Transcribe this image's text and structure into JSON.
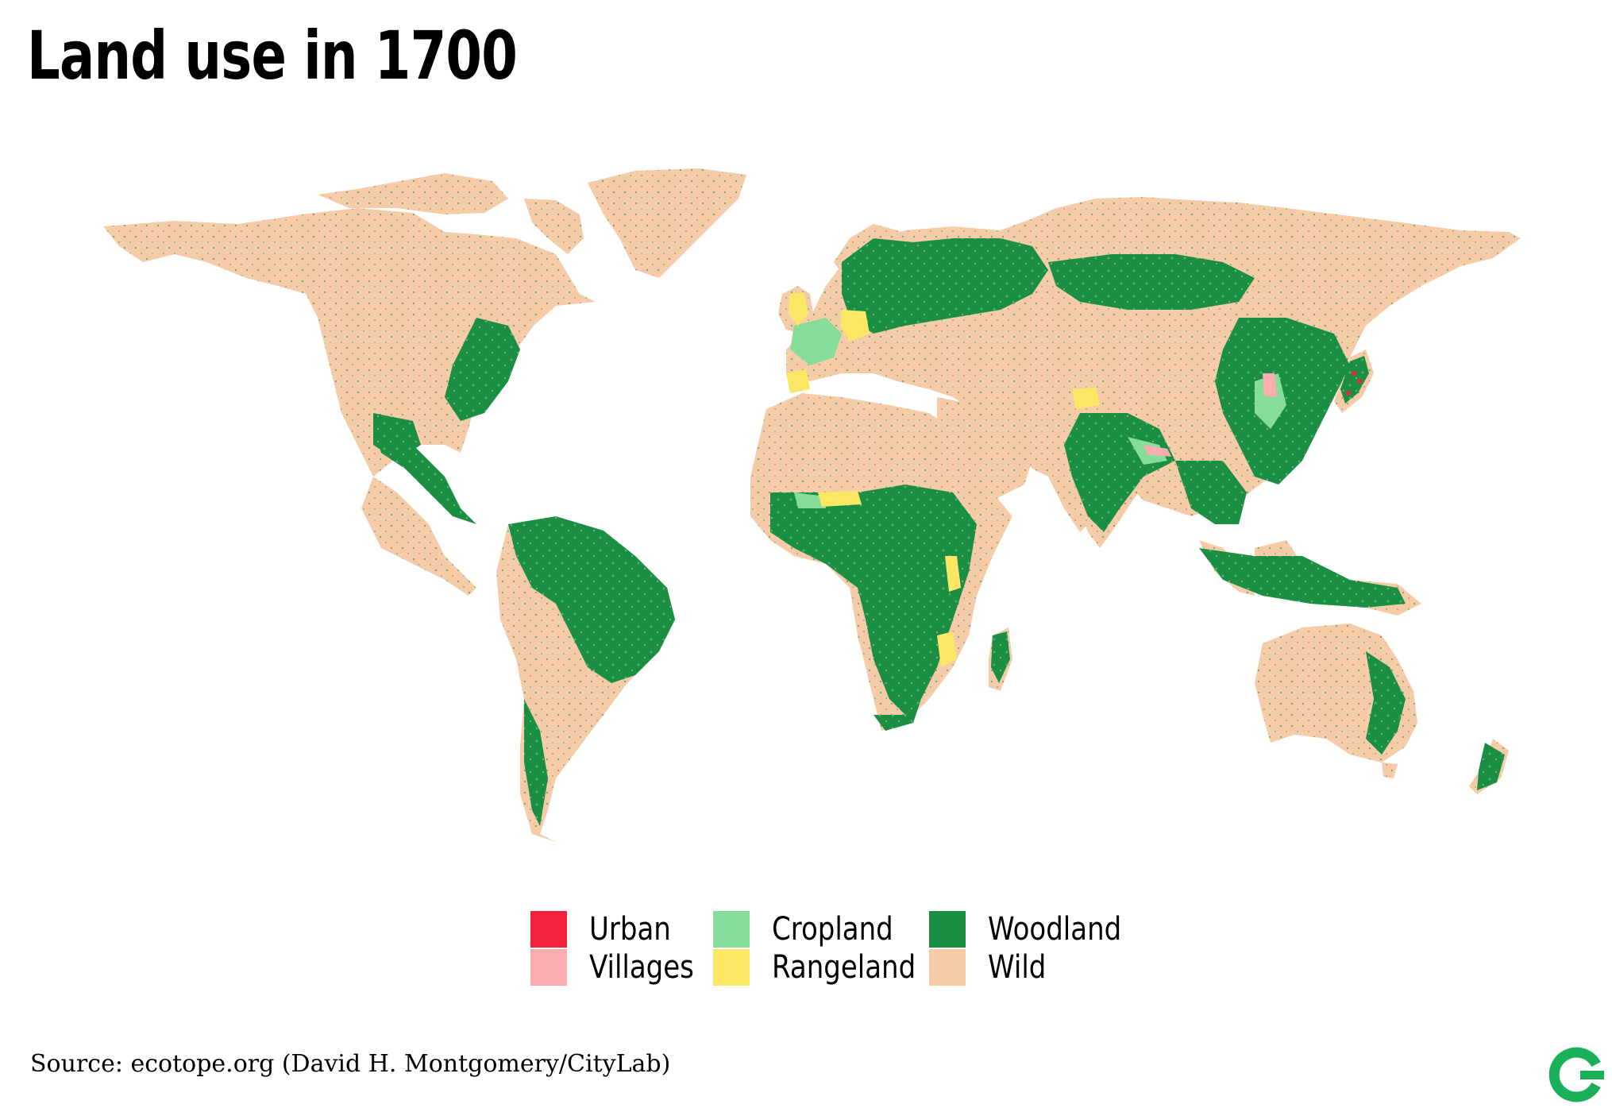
{
  "title": "Land use in 1700",
  "source": "Source: ecotope.org (David H. Montgomery/CityLab)",
  "colors": {
    "urban": "#f5223f",
    "villages": "#fcadad",
    "cropland": "#86dd9a",
    "rangeland": "#fbe764",
    "woodland": "#1a8f44",
    "wild": "#f6cba8",
    "logo": "#1ab05a"
  },
  "legend": [
    {
      "label": "Urban",
      "color": "#f5223f"
    },
    {
      "label": "Villages",
      "color": "#fcadad"
    },
    {
      "label": "Cropland",
      "color": "#86dd9a"
    },
    {
      "label": "Rangeland",
      "color": "#fbe764"
    },
    {
      "label": "Woodland",
      "color": "#1a8f44"
    },
    {
      "label": "Wild",
      "color": "#f6cba8"
    }
  ],
  "logo_icon": "citylab-c-icon"
}
